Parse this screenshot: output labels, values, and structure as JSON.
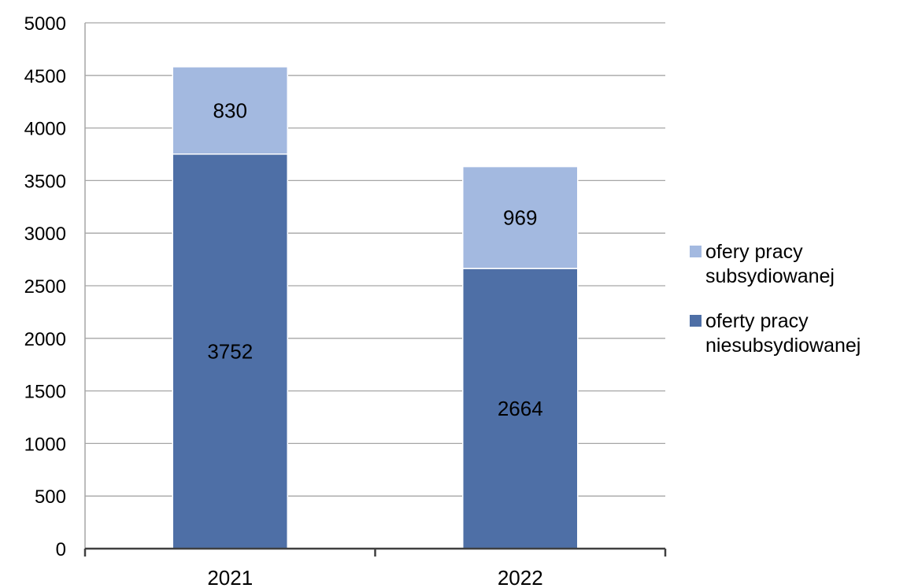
{
  "chart_data": {
    "type": "bar",
    "stacked": true,
    "categories": [
      "2021",
      "2022"
    ],
    "series": [
      {
        "name": "oferty pracy niesubsydiowanej",
        "name_lines": [
          "oferty pracy",
          "niesubsydiowanej"
        ],
        "values": [
          3752,
          2664
        ],
        "color": "#4e6fa6"
      },
      {
        "name": "ofery pracy subsydiowanej",
        "name_lines": [
          "ofery pracy",
          "subsydiowanej"
        ],
        "values": [
          830,
          969
        ],
        "color": "#a3b9e0"
      }
    ],
    "ylim": [
      0,
      5000
    ],
    "yticks": [
      "0",
      "500",
      "1000",
      "1500",
      "2000",
      "2500",
      "3000",
      "3500",
      "4000",
      "4500",
      "5000"
    ],
    "grid": true,
    "legend": "right",
    "title": "",
    "xlabel": "",
    "ylabel": ""
  }
}
